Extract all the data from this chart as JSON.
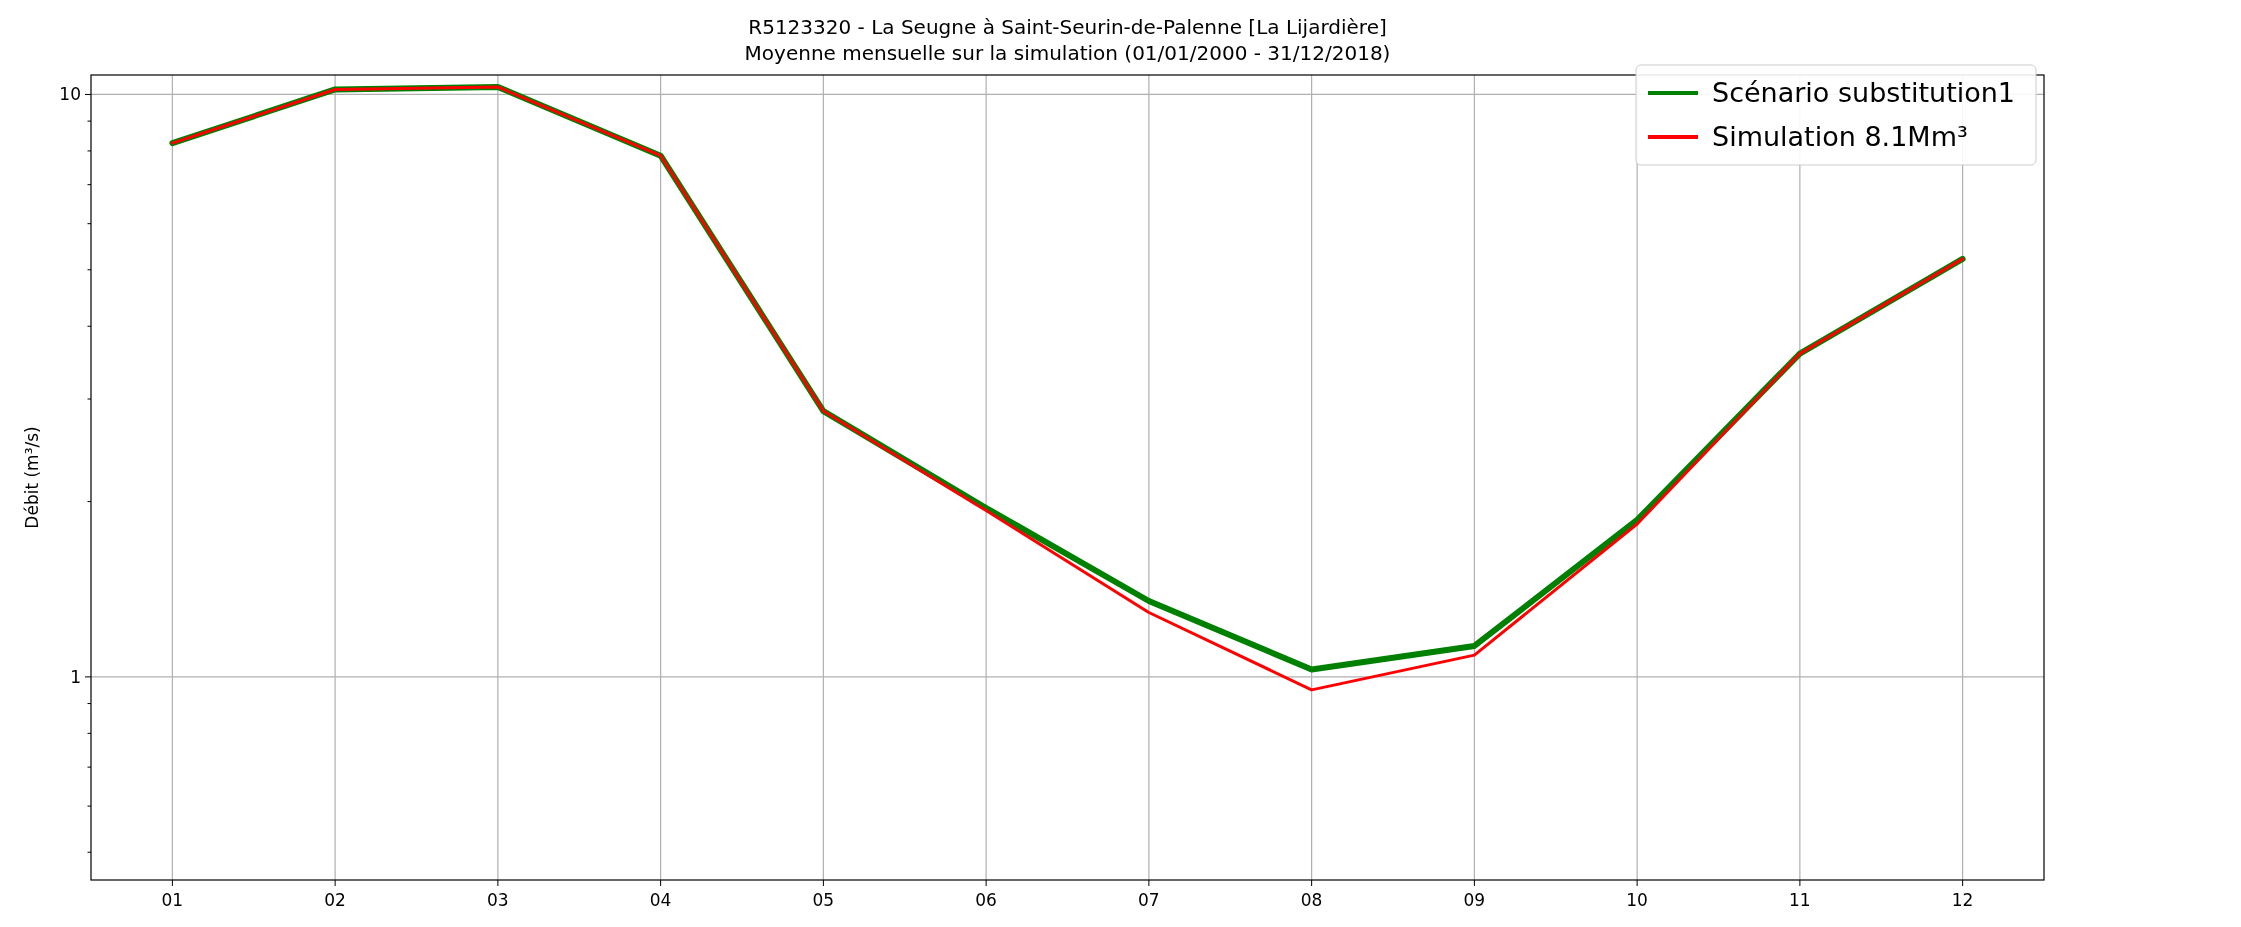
{
  "chart_data": {
    "type": "line",
    "title": "R5123320 - La Seugne à Saint-Seurin-de-Palenne [La Lijardière]",
    "subtitle": "Moyenne mensuelle sur la simulation (01/01/2000 - 31/12/2018)",
    "ylabel": "Débit (m³/s)",
    "categories": [
      "01",
      "02",
      "03",
      "04",
      "05",
      "06",
      "07",
      "08",
      "09",
      "10",
      "11",
      "12"
    ],
    "series": [
      {
        "name": "Scénario substitution1",
        "color": "#008000",
        "values": [
          8.25,
          10.2,
          10.3,
          7.85,
          2.86,
          1.95,
          1.35,
          1.03,
          1.13,
          1.86,
          3.59,
          5.22
        ]
      },
      {
        "name": "Simulation 8.1Mm³",
        "color": "#ff0000",
        "values": [
          8.25,
          10.2,
          10.3,
          7.85,
          2.86,
          1.93,
          1.29,
          0.95,
          1.09,
          1.83,
          3.59,
          5.22
        ]
      }
    ],
    "log": true,
    "ylim": [
      0.448,
      10.8
    ],
    "yticks": [
      {
        "value": 0.5,
        "label": null
      },
      {
        "value": 0.6,
        "label": null
      },
      {
        "value": 0.7,
        "label": null
      },
      {
        "value": 0.8,
        "label": null
      },
      {
        "value": 0.9,
        "label": null
      },
      1,
      {
        "value": 2,
        "label": null
      },
      {
        "value": 3,
        "label": null
      },
      {
        "value": 4,
        "label": null
      },
      {
        "value": 5,
        "label": null
      },
      {
        "value": 6,
        "label": null
      },
      {
        "value": 7,
        "label": null
      },
      {
        "value": 8,
        "label": null
      },
      {
        "value": 9,
        "label": null
      },
      10
    ],
    "grid": true,
    "legend": "top right"
  }
}
